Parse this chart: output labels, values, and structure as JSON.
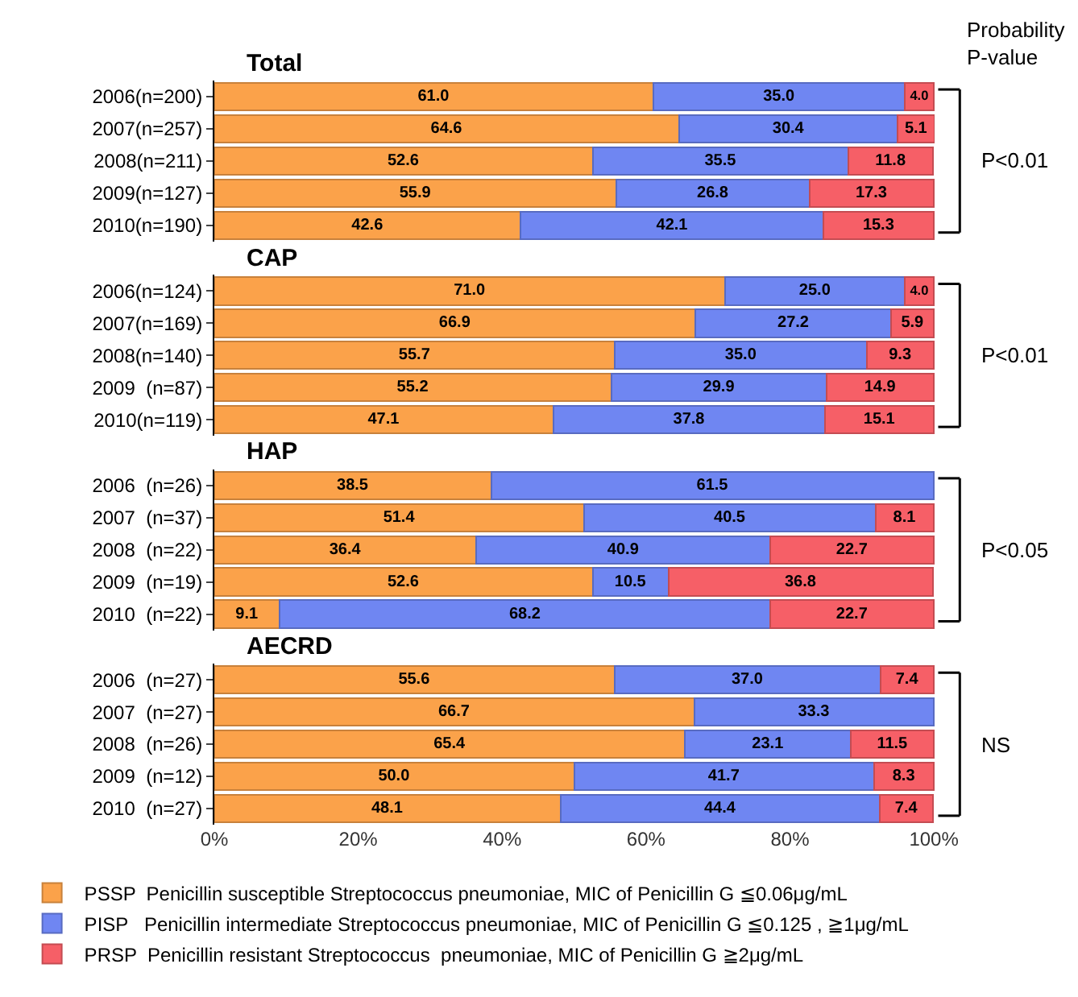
{
  "chart_data": [
    {
      "type": "bar",
      "orientation": "horizontal",
      "stacked": true,
      "legend": false,
      "tick_labels": "y",
      "title": "Total",
      "annotations": [
        "Probability\nP-value",
        "P<0.01"
      ],
      "categories": [
        "2006(n=200)",
        "2007(n=257)",
        "2008(n=211)",
        "2009(n=127)",
        "2010(n=190)"
      ],
      "xlim": [
        0,
        100.1
      ],
      "series": [
        {
          "color": "#fba24a",
          "values": [
            61.0,
            64.6,
            52.6,
            55.9,
            42.6
          ],
          "value_labels": [
            "61.0",
            "64.6",
            "52.6",
            "55.9",
            "42.6"
          ]
        },
        {
          "color": "#6f86f2",
          "values": [
            35.0,
            30.4,
            35.5,
            26.8,
            42.1
          ],
          "value_labels": [
            "35.0",
            "30.4",
            "35.5",
            "26.8",
            "42.1"
          ]
        },
        {
          "color": "#f65f67",
          "values": [
            4.0,
            5.1,
            11.8,
            17.3,
            15.3
          ],
          "value_labels": [
            "4.0",
            "5.1",
            "11.8",
            "17.3",
            "15.3"
          ]
        }
      ]
    },
    {
      "type": "bar",
      "orientation": "horizontal",
      "stacked": true,
      "legend": false,
      "tick_labels": "y",
      "title": "CAP",
      "annotations": [
        "P<0.01"
      ],
      "categories": [
        "2006(n=124)",
        "2007(n=169)",
        "2008(n=140)",
        "2009  (n=87)",
        "2010(n=119)"
      ],
      "xlim": [
        0,
        100.1
      ],
      "series": [
        {
          "color": "#fba24a",
          "values": [
            71.0,
            66.9,
            55.7,
            55.2,
            47.1
          ],
          "value_labels": [
            "71.0",
            "66.9",
            "55.7",
            "55.2",
            "47.1"
          ]
        },
        {
          "color": "#6f86f2",
          "values": [
            25.0,
            27.2,
            35.0,
            29.9,
            37.8
          ],
          "value_labels": [
            "25.0",
            "27.2",
            "35.0",
            "29.9",
            "37.8"
          ]
        },
        {
          "color": "#f65f67",
          "values": [
            4.0,
            5.9,
            9.3,
            14.9,
            15.1
          ],
          "value_labels": [
            "4.0",
            "5.9",
            "9.3",
            "14.9",
            "15.1"
          ]
        }
      ]
    },
    {
      "type": "bar",
      "orientation": "horizontal",
      "stacked": true,
      "legend": false,
      "tick_labels": "y",
      "title": "HAP",
      "annotations": [
        "P<0.05"
      ],
      "categories": [
        "2006  (n=26)",
        "2007  (n=37)",
        "2008  (n=22)",
        "2009  (n=19)",
        "2010  (n=22)"
      ],
      "xlim": [
        0,
        100.1
      ],
      "series": [
        {
          "color": "#fba24a",
          "values": [
            38.5,
            51.4,
            36.4,
            52.6,
            9.1
          ],
          "value_labels": [
            "38.5",
            "51.4",
            "36.4",
            "52.6",
            "9.1"
          ]
        },
        {
          "color": "#6f86f2",
          "values": [
            61.5,
            40.5,
            40.9,
            10.5,
            68.2
          ],
          "value_labels": [
            "61.5",
            "40.5",
            "40.9",
            "10.5",
            "68.2"
          ]
        },
        {
          "color": "#f65f67",
          "values": [
            null,
            8.1,
            22.7,
            36.8,
            22.7
          ],
          "value_labels": [
            null,
            "8.1",
            "22.7",
            "36.8",
            "22.7"
          ]
        }
      ]
    },
    {
      "type": "bar",
      "orientation": "horizontal",
      "stacked": true,
      "legend": "bottom",
      "title": "AECRD",
      "annotations": [
        "NS"
      ],
      "categories": [
        "2006  (n=27)",
        "2007  (n=27)",
        "2008  (n=26)",
        "2009  (n=12)",
        "2010  (n=27)"
      ],
      "xlim": [
        0,
        100.1
      ],
      "xticks": [
        {
          "value": 0,
          "label": "0%"
        },
        {
          "value": 20,
          "label": "20%"
        },
        {
          "value": 40,
          "label": "40%"
        },
        {
          "value": 60,
          "label": "60%"
        },
        {
          "value": 80,
          "label": "80%"
        },
        {
          "value": 100,
          "label": "100%"
        }
      ],
      "series": [
        {
          "name": "PSSP  Penicillin susceptible Streptococcus pneumoniae, MIC of Penicillin G ≦0.06μg/mL",
          "color": "#fba24a",
          "values": [
            55.6,
            66.7,
            65.4,
            50.0,
            48.1
          ],
          "value_labels": [
            "55.6",
            "66.7",
            "65.4",
            "50.0",
            "48.1"
          ]
        },
        {
          "name": "PISP   Penicillin intermediate Streptococcus pneumoniae, MIC of Penicillin G ≦0.125 , ≧1μg/mL",
          "color": "#6f86f2",
          "values": [
            37.0,
            33.3,
            23.1,
            41.7,
            44.4
          ],
          "value_labels": [
            "37.0",
            "33.3",
            "23.1",
            "41.7",
            "44.4"
          ]
        },
        {
          "name": "PRSP  Penicillin resistant Streptococcus  pneumoniae, MIC of Penicillin G ≧2μg/mL",
          "color": "#f65f67",
          "values": [
            7.4,
            null,
            11.5,
            8.3,
            7.4
          ],
          "value_labels": [
            "7.4",
            null,
            "11.5",
            "8.3",
            "7.4"
          ]
        }
      ]
    }
  ]
}
